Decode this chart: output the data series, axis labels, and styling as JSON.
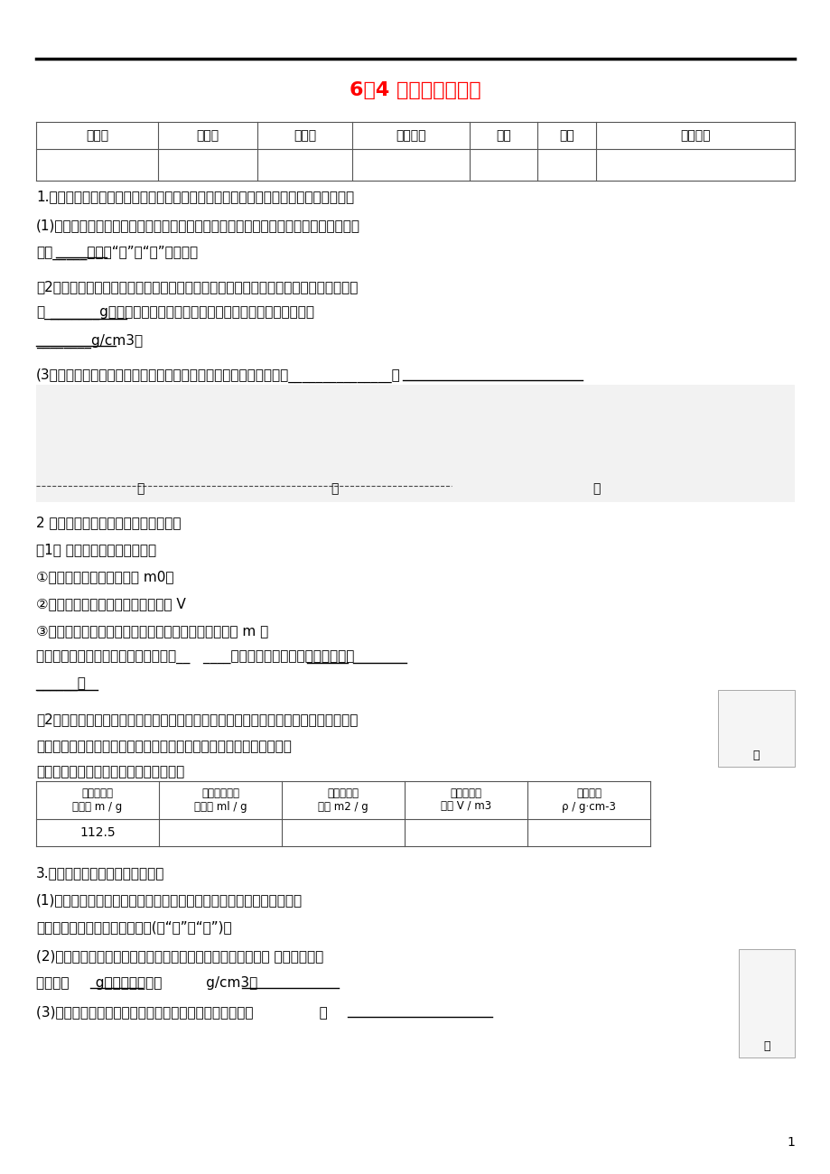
{
  "title": "6、4 密度知识的应用",
  "title_color": "#FF0000",
  "bg_color": "#FFFFFF",
  "text_color": "#000000",
  "header_row": [
    "命题人",
    "做题人",
    "审核人",
    "学生姓名",
    "班级",
    "评价",
    "批阅日期"
  ],
  "q1_intro": "1.在一次郊游中，小明拾到一块颜色特别的石块，他想通过实验测出这块石块的密度。",
  "q1_1a": "(1)调节天平横梁平衡时，发现指针静止在分度盘上的位置如图甲所示，此时应将平衡螺",
  "q1_1b": "母向_____（选填“左”或“右”）移动。",
  "q1_2a": "（2）用调节好的天平测石块的质量，所用砂码和游码的位置如图乙所示，则石块的质量",
  "q1_2b": "是________g。再用量筒测出石块的体积如图丙所示，则石块的密度是",
  "q1_2c": "________g/cm3。",
  "q1_3": "(3）分析上述实验操作过程，发现会导致测量的密度値偏小，原因是_______________。",
  "q2_intro": "2 小星同学进行测定煎油密度的实验。",
  "q2_1": "（1） 第一次的方法和步骤是：",
  "q2_1a": "①用天平测出空烧杯的质量 m0；",
  "q2_1b": "②把煎油倒入量筒，测出煎油的体积 V",
  "q2_1c": "③把量筒中的煎油倒入烧杯，测出烧杯和煎油的总质量 m 总",
  "q2_1d_a": "请用上述物理量写出煎油密度的计算式__   ____。这样测出的密度与真实値相比偏",
  "q2_1d_b": "______。",
  "q2_2a": "（2）经改进后，小星的方法和步骤完全正确。他称量烧杯和剩余煎油的质量时，所用砂",
  "q2_2b_text": "码和游码的位置如图甲所示．煎油倒入量筒后的液面位置如图乙所示。",
  "q2_2c": "根据图中数据，帮小星把下表填写完整。",
  "table2_headers": [
    "烧杯和油的\n总质量 m / g",
    "烧杯和剩余油\n的质量 ml / g",
    "量筒中油的\n质量 m2 / g",
    "量筒中油的\n体积 V / m3",
    "油的密度\nρ / g·cm-3"
  ],
  "table2_data": [
    "112.5",
    "",
    "",
    "",
    ""
  ],
  "q3_intro": "3.张亮通过实验测量牛奶的密度：",
  "q3_1a": "(1)调节天平横梁平衡时，指针偏向分度盘中央刻度线的右侧，此时应向",
  "q3_1b": "移动平衡螺母，才能使天平平衡(填“左”或“右”)。",
  "q3_2a": "(2)他按图中甲、乙、丙的步骤顺序进行实验，依图中数据可知 牛奶和烧杯的",
  "q3_2b": "总质量为      g，牛奶的密度为          g/cm3。",
  "q3_3": "(3)为了更准确地测量牛奶的密度，实验步骤顺序应调整为               。",
  "page_num": "1"
}
